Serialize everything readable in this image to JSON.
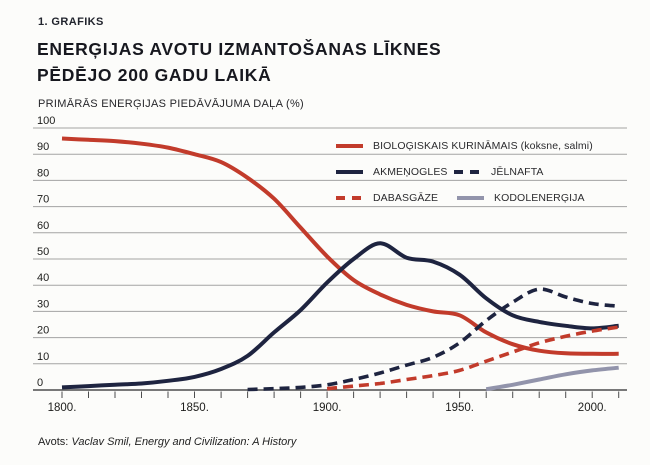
{
  "header": {
    "kicker": "1. GRAFIKS",
    "title_line1": "ENERĢIJAS AVOTU IZMANTOŠANAS LĪKNES",
    "title_line2": "PĒDĒJO 200 GADU LAIKĀ",
    "subtitle": "PRIMĀRĀS ENERĢIJAS PIEDĀVĀJUMA DAĻA (%)"
  },
  "footer": {
    "source_label": "Avots:",
    "source_text": "Vaclav Smil, Energy and Civilization: A History"
  },
  "colors": {
    "red": "#c23b2b",
    "navy": "#1e2440",
    "nuclear": "#9294ab",
    "grid": "#a3a3a3",
    "axis": "#4d4d4d",
    "text": "#1d1d1b",
    "background": "#fcfcfa"
  },
  "chart_data": {
    "type": "line",
    "title": "Enerģijas avotu izmantošanas līknes pēdējo 200 gadu laikā",
    "xlabel": "",
    "ylabel": "Primārās enerģijas piedāvājuma daļa (%)",
    "ylim": [
      0,
      100
    ],
    "yticks": [
      0,
      10,
      20,
      30,
      40,
      50,
      60,
      70,
      80,
      90,
      100
    ],
    "xlim": [
      1800,
      2012
    ],
    "xticks_major": [
      1800,
      1850,
      1900,
      1950,
      2000
    ],
    "xtick_labels": [
      "1800.",
      "1850.",
      "1900.",
      "1950.",
      "2000."
    ],
    "xtick_minor_step": 10,
    "grid": "horizontal",
    "legend_position": "top-right",
    "series": [
      {
        "name": "BIOLOĢISKAIS KURINĀMAIS (koksne, salmi)",
        "color": "#c23b2b",
        "dash": false,
        "x": [
          1800,
          1810,
          1820,
          1830,
          1840,
          1850,
          1860,
          1870,
          1880,
          1890,
          1900,
          1910,
          1920,
          1930,
          1940,
          1950,
          1960,
          1970,
          1980,
          1990,
          2000,
          2010
        ],
        "values": [
          96,
          95.5,
          95,
          94,
          92.5,
          90,
          87,
          81,
          73,
          62,
          51,
          42,
          36.5,
          32.5,
          30,
          28.5,
          22,
          17.5,
          15,
          14,
          13.8,
          13.8
        ]
      },
      {
        "name": "AKMEŅOGLES",
        "color": "#1e2440",
        "dash": false,
        "x": [
          1800,
          1810,
          1820,
          1830,
          1840,
          1850,
          1860,
          1870,
          1880,
          1890,
          1900,
          1910,
          1920,
          1930,
          1940,
          1950,
          1960,
          1970,
          1980,
          1990,
          2000,
          2010
        ],
        "values": [
          1,
          1.5,
          2,
          2.5,
          3.5,
          5,
          8,
          13,
          22,
          30.5,
          41,
          50,
          56,
          50.5,
          49,
          44,
          35,
          28.5,
          26,
          24.5,
          23.5,
          24.5
        ]
      },
      {
        "name": "JĒLNAFTA",
        "color": "#1e2440",
        "dash": true,
        "x": [
          1870,
          1880,
          1890,
          1900,
          1910,
          1920,
          1930,
          1940,
          1950,
          1960,
          1970,
          1980,
          1990,
          2000,
          2010
        ],
        "values": [
          0.2,
          0.5,
          1,
          2,
          4,
          6.5,
          9.5,
          12.5,
          18,
          26.5,
          33.5,
          38.5,
          35.5,
          33,
          32
        ]
      },
      {
        "name": "DABASGĀZE",
        "color": "#c23b2b",
        "dash": true,
        "x": [
          1900,
          1910,
          1920,
          1930,
          1940,
          1950,
          1960,
          1970,
          1980,
          1990,
          2000,
          2010
        ],
        "values": [
          0.5,
          1.5,
          2.5,
          4,
          5.5,
          7.5,
          11,
          14.5,
          18,
          20.5,
          22.5,
          24
        ]
      },
      {
        "name": "KODOLENERĢIJA",
        "color": "#9294ab",
        "dash": false,
        "x": [
          1960,
          1970,
          1980,
          1990,
          2000,
          2010
        ],
        "values": [
          0.3,
          2,
          4,
          6,
          7.5,
          8.5
        ]
      }
    ]
  }
}
